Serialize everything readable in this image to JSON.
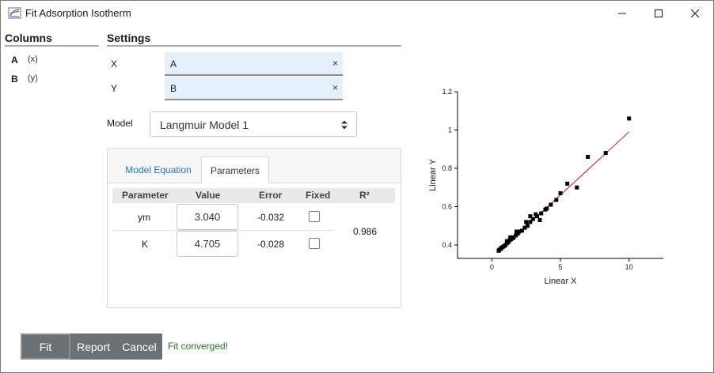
{
  "window": {
    "title": "Fit Adsorption Isotherm"
  },
  "columns": {
    "header": "Columns",
    "items": [
      {
        "name": "A",
        "type": "(x)"
      },
      {
        "name": "B",
        "type": "(y)"
      }
    ]
  },
  "settings": {
    "header": "Settings",
    "x_label": "X",
    "x_value": "A",
    "y_label": "Y",
    "y_value": "B",
    "clear_glyph": "×",
    "model_label": "Model",
    "model_value": "Langmuir Model 1"
  },
  "tabs": {
    "equation": "Model Equation",
    "parameters": "Parameters"
  },
  "param_table": {
    "headers": [
      "Parameter",
      "Value",
      "Error",
      "Fixed",
      "R²"
    ],
    "rows": [
      {
        "name": "ym",
        "value": "3.040",
        "error": "-0.032"
      },
      {
        "name": "K",
        "value": "4.705",
        "error": "-0.028"
      }
    ],
    "r2": "0.986"
  },
  "buttons": {
    "fit": "Fit",
    "report": "Report",
    "cancel": "Cancel"
  },
  "status": "Fit converged!",
  "chart_data": {
    "type": "scatter",
    "xlabel": "Linear X",
    "ylabel": "Linear Y",
    "xlim": [
      -2.5,
      12.5
    ],
    "ylim": [
      0.33,
      1.2
    ],
    "x_ticks": [
      0,
      5,
      10
    ],
    "y_ticks": [
      0.4,
      0.6,
      0.8,
      1.0,
      1.2
    ],
    "y_tick_labels": [
      "0.4",
      "0.6",
      "0.8",
      "1",
      "1.2"
    ],
    "series": [
      {
        "points": [
          [
            0.5,
            0.37
          ],
          [
            0.55,
            0.375
          ],
          [
            0.65,
            0.38
          ],
          [
            0.8,
            0.39
          ],
          [
            0.9,
            0.395
          ],
          [
            1.0,
            0.4
          ],
          [
            1.1,
            0.41
          ],
          [
            1.2,
            0.415
          ],
          [
            1.3,
            0.425
          ],
          [
            1.4,
            0.43
          ],
          [
            1.5,
            0.435
          ],
          [
            1.6,
            0.44
          ],
          [
            1.75,
            0.45
          ],
          [
            1.9,
            0.46
          ],
          [
            2.0,
            0.47
          ],
          [
            2.2,
            0.475
          ],
          [
            2.4,
            0.49
          ],
          [
            2.6,
            0.5
          ],
          [
            2.8,
            0.52
          ],
          [
            3.0,
            0.535
          ],
          [
            3.3,
            0.55
          ],
          [
            3.6,
            0.565
          ],
          [
            3.9,
            0.585
          ],
          [
            4.3,
            0.61
          ],
          [
            4.7,
            0.635
          ],
          [
            5.0,
            0.67
          ],
          [
            5.5,
            0.72
          ],
          [
            6.2,
            0.7
          ],
          [
            7.0,
            0.86
          ],
          [
            8.3,
            0.88
          ],
          [
            10.0,
            1.06
          ],
          [
            1.35,
            0.44
          ],
          [
            1.8,
            0.47
          ],
          [
            2.5,
            0.52
          ],
          [
            3.2,
            0.56
          ],
          [
            3.5,
            0.53
          ],
          [
            4.0,
            0.59
          ],
          [
            2.8,
            0.55
          ],
          [
            1.1,
            0.42
          ],
          [
            0.7,
            0.385
          ]
        ],
        "fit_line": [
          [
            0.5,
            0.365
          ],
          [
            10.0,
            0.99
          ]
        ]
      }
    ],
    "marker_color": "#000000",
    "fit_color": "#d01010"
  }
}
